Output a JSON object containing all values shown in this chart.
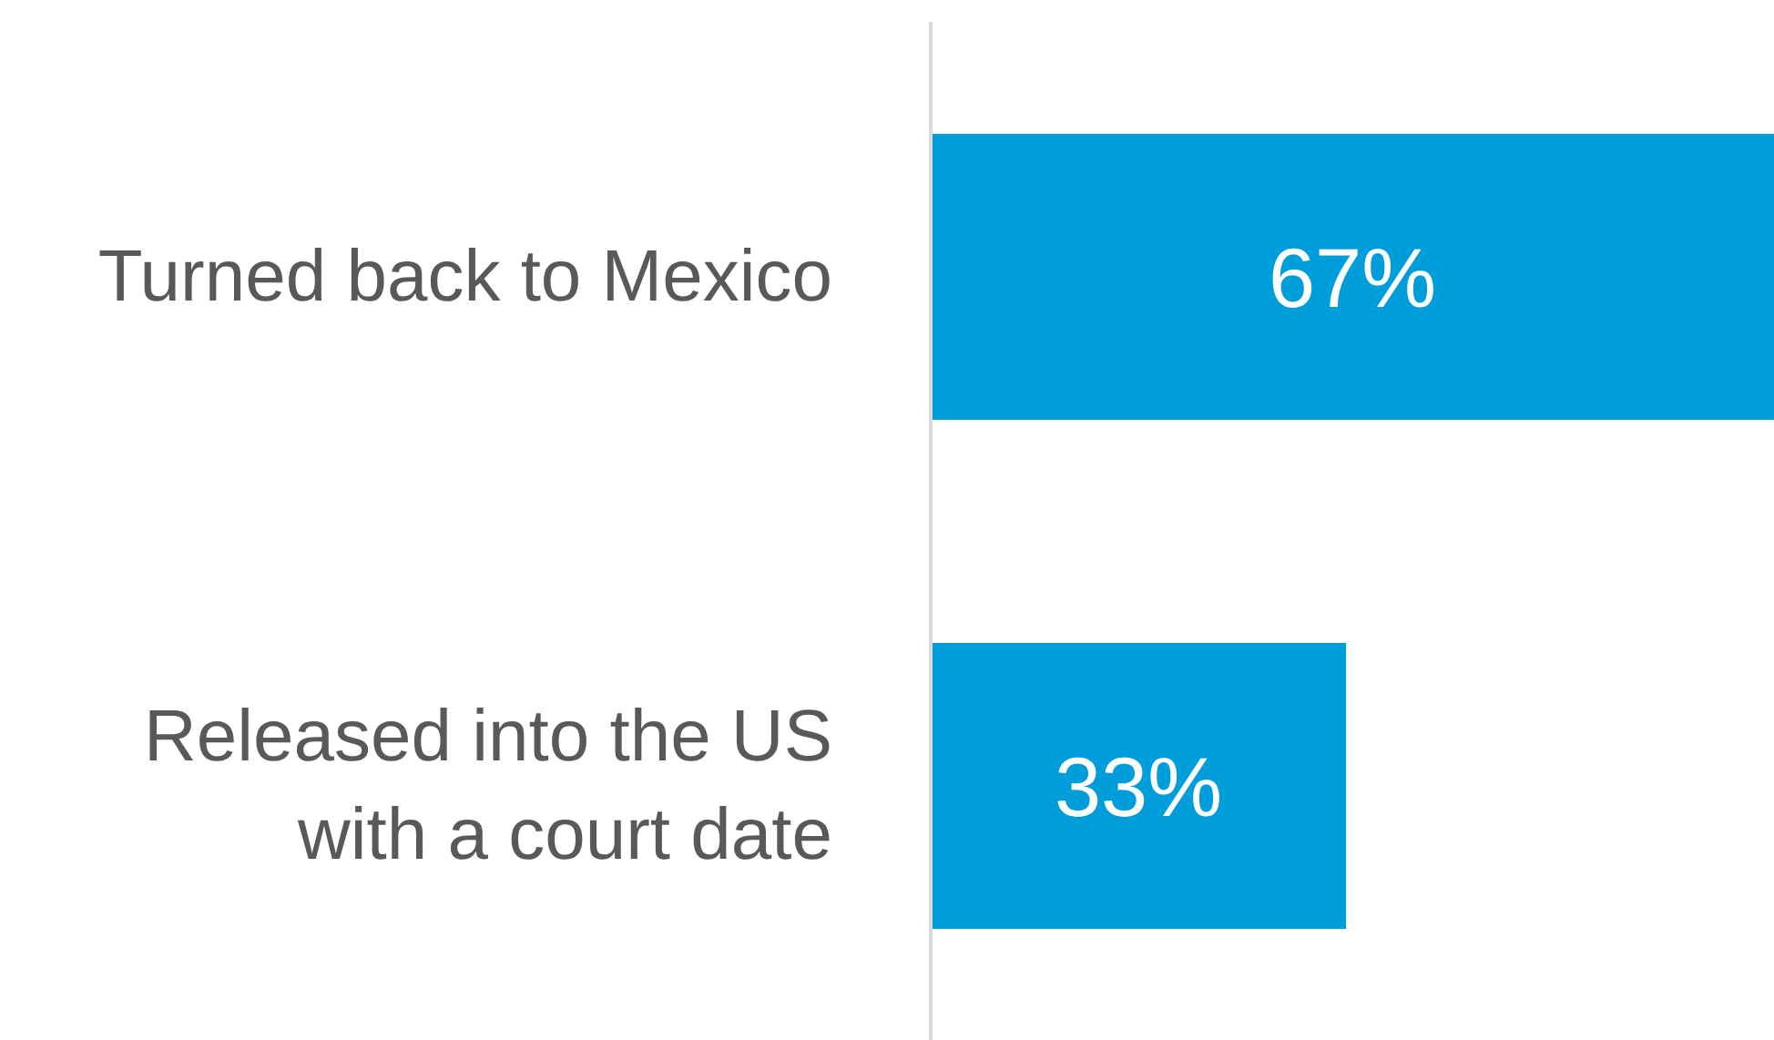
{
  "chart_data": {
    "type": "bar",
    "orientation": "horizontal",
    "categories": [
      "Turned back to Mexico",
      "Released into the US with a court date"
    ],
    "values": [
      67,
      33
    ],
    "color": "#009ddb",
    "value_labels": [
      "67%",
      "33%"
    ]
  }
}
